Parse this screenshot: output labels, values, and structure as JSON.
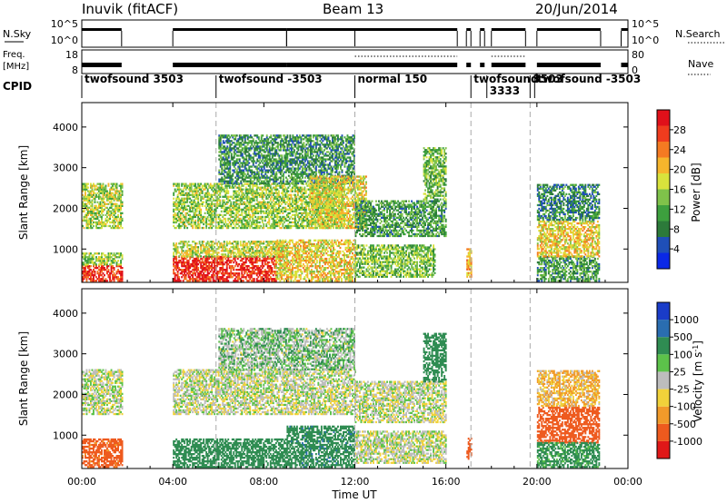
{
  "header": {
    "station": "Inuvik (fitACF)",
    "beam": "Beam 13",
    "date": "20/Jun/2014"
  },
  "top_panels": {
    "nsky_label": "N.Sky",
    "nsky_ticks": [
      "10^5",
      "10^0"
    ],
    "nsearch_label": "N.Search",
    "nsearch_ticks": [
      "10^5",
      "10^0"
    ],
    "freq_label_1": "Freq.",
    "freq_label_2": "[MHz]",
    "freq_ticks": [
      "18",
      "8"
    ],
    "nave_label": "Nave",
    "nave_ticks": [
      "80",
      "0"
    ],
    "cpid_label": "CPID"
  },
  "cpid_segments": [
    {
      "label": "twofsound 3503",
      "start": 0.0,
      "end": 5.9
    },
    {
      "label": "twofsound -3503",
      "start": 5.9,
      "end": 12.0
    },
    {
      "label": "normal 150",
      "start": 12.0,
      "end": 17.1
    },
    {
      "label": "twofsound",
      "start": 17.1,
      "end": 19.7
    },
    {
      "label": "3333",
      "start": 17.8,
      "end": 19.7
    },
    {
      "label": "3503",
      "start": 19.7,
      "end": 20.2
    },
    {
      "label": "twofsound -3503",
      "start": 19.9,
      "end": 24.0
    }
  ],
  "colorbars": {
    "power": {
      "label": "Power [dB]",
      "ticks": [
        "28",
        "24",
        "20",
        "16",
        "12",
        "8",
        "4"
      ],
      "colors": [
        "#0a28e6",
        "#1f4fb8",
        "#2c7a3a",
        "#3da03e",
        "#7fc24a",
        "#d9e23c",
        "#f6b52c",
        "#f47a22",
        "#ef3c1e",
        "#e0101a"
      ]
    },
    "velocity": {
      "label": "Velocity [m s",
      "label_sup": "-1",
      "label_end": "]",
      "ticks": [
        "1000",
        "500",
        "100",
        "25",
        "-25",
        "-100",
        "-500",
        "-1000"
      ],
      "colors": [
        "#1a3cc8",
        "#2a6db0",
        "#2f8c52",
        "#5cc24a",
        "#bdbdbd",
        "#f1d23a",
        "#f19a2a",
        "#ee5a1e",
        "#e01818"
      ]
    }
  },
  "axes": {
    "ylabel": "Slant Range [km]",
    "yticks": [
      "4000",
      "3000",
      "2000",
      "1000"
    ],
    "xticks": [
      "00:00",
      "04:00",
      "08:00",
      "12:00",
      "16:00",
      "20:00",
      "00:00"
    ],
    "xlabel": "Time UT"
  },
  "chart_data": [
    {
      "type": "heatmap",
      "title": "Power",
      "xlabel": "Time UT",
      "ylabel": "Slant Range [km]",
      "xlim": [
        0,
        24
      ],
      "ylim": [
        180,
        4600
      ],
      "colorbar_label": "Power [dB]",
      "colorbar_range": [
        0,
        30
      ],
      "cpid_boundaries_hours": [
        5.9,
        12.0,
        17.1,
        19.7
      ],
      "blocks": [
        {
          "t0": 0.0,
          "t1": 1.75,
          "r0": 200,
          "r1": 600,
          "value": 26
        },
        {
          "t0": 0.0,
          "t1": 1.75,
          "r0": 600,
          "r1": 900,
          "value": 14
        },
        {
          "t0": 0.0,
          "t1": 1.75,
          "r0": 1500,
          "r1": 2600,
          "value": 15
        },
        {
          "t0": 4.0,
          "t1": 8.5,
          "r0": 200,
          "r1": 800,
          "value": 27
        },
        {
          "t0": 4.0,
          "t1": 9.0,
          "r0": 800,
          "r1": 1200,
          "value": 16
        },
        {
          "t0": 4.0,
          "t1": 11.5,
          "r0": 1500,
          "r1": 2600,
          "value": 14
        },
        {
          "t0": 6.0,
          "t1": 12.0,
          "r0": 2600,
          "r1": 3800,
          "value": 9
        },
        {
          "t0": 8.5,
          "t1": 12.0,
          "r0": 200,
          "r1": 1200,
          "value": 18
        },
        {
          "t0": 10.0,
          "t1": 12.5,
          "r0": 1500,
          "r1": 2800,
          "value": 17
        },
        {
          "t0": 12.0,
          "t1": 15.5,
          "r0": 300,
          "r1": 1100,
          "value": 13
        },
        {
          "t0": 12.0,
          "t1": 16.0,
          "r0": 1300,
          "r1": 2200,
          "value": 10
        },
        {
          "t0": 15.0,
          "t1": 16.0,
          "r0": 2200,
          "r1": 3500,
          "value": 12
        },
        {
          "t0": 16.9,
          "t1": 17.1,
          "r0": 300,
          "r1": 1000,
          "value": 20
        },
        {
          "t0": 20.0,
          "t1": 22.7,
          "r0": 200,
          "r1": 800,
          "value": 10
        },
        {
          "t0": 20.0,
          "t1": 22.7,
          "r0": 800,
          "r1": 1700,
          "value": 18
        },
        {
          "t0": 20.0,
          "t1": 22.7,
          "r0": 1700,
          "r1": 2600,
          "value": 8
        }
      ]
    },
    {
      "type": "heatmap",
      "title": "Velocity",
      "xlabel": "Time UT",
      "ylabel": "Slant Range [km]",
      "xlim": [
        0,
        24
      ],
      "ylim": [
        180,
        4600
      ],
      "colorbar_label": "Velocity [m s-1]",
      "colorbar_ticks": [
        1000,
        500,
        100,
        25,
        -25,
        -100,
        -500,
        -1000
      ],
      "cpid_boundaries_hours": [
        5.9,
        12.0,
        17.1,
        19.7
      ],
      "blocks": [
        {
          "t0": 0.0,
          "t1": 1.75,
          "r0": 200,
          "r1": 900,
          "value": -300
        },
        {
          "t0": 0.0,
          "t1": 1.75,
          "r0": 1500,
          "r1": 2600,
          "value": 0
        },
        {
          "t0": 4.0,
          "t1": 9.0,
          "r0": 200,
          "r1": 900,
          "value": 150
        },
        {
          "t0": 4.0,
          "t1": 12.0,
          "r0": 1500,
          "r1": 2600,
          "value": 0
        },
        {
          "t0": 6.0,
          "t1": 12.0,
          "r0": 2600,
          "r1": 3600,
          "value": 30
        },
        {
          "t0": 9.0,
          "t1": 12.0,
          "r0": 200,
          "r1": 1200,
          "value": 200
        },
        {
          "t0": 12.0,
          "t1": 16.0,
          "r0": 300,
          "r1": 1100,
          "value": 0
        },
        {
          "t0": 12.0,
          "t1": 16.0,
          "r0": 1300,
          "r1": 2300,
          "value": 0
        },
        {
          "t0": 15.0,
          "t1": 16.0,
          "r0": 2300,
          "r1": 3500,
          "value": 120
        },
        {
          "t0": 16.9,
          "t1": 17.1,
          "r0": 400,
          "r1": 900,
          "value": -300
        },
        {
          "t0": 20.0,
          "t1": 22.7,
          "r0": 800,
          "r1": 1700,
          "value": -400
        },
        {
          "t0": 20.0,
          "t1": 22.7,
          "r0": 200,
          "r1": 800,
          "value": 100
        },
        {
          "t0": 20.0,
          "t1": 22.7,
          "r0": 1700,
          "r1": 2600,
          "value": -60
        }
      ]
    }
  ]
}
